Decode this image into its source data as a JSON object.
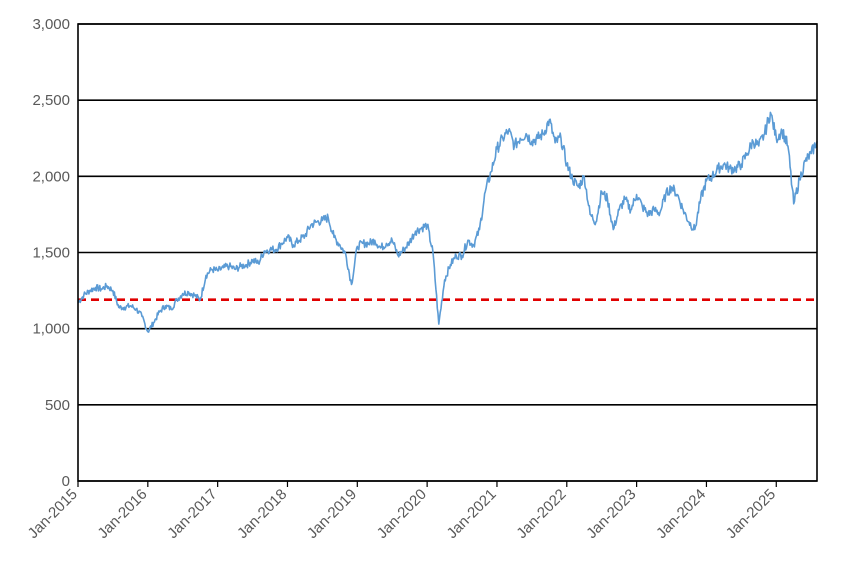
{
  "chart_data": {
    "type": "line",
    "title": "",
    "xlabel": "",
    "ylabel": "",
    "ylim": [
      0,
      3000
    ],
    "xlim": [
      "2015-01",
      "2025-08"
    ],
    "y_ticks": [
      0,
      500,
      1000,
      1500,
      2000,
      2500,
      3000
    ],
    "y_tick_labels": [
      "0",
      "500",
      "1,000",
      "1,500",
      "2,000",
      "2,500",
      "3,000"
    ],
    "x_ticks": [
      "2015-01",
      "2016-01",
      "2017-01",
      "2018-01",
      "2019-01",
      "2020-01",
      "2021-01",
      "2022-01",
      "2023-01",
      "2024-01",
      "2025-01"
    ],
    "x_tick_labels": [
      "Jan-2015",
      "Jan-2016",
      "Jan-2017",
      "Jan-2018",
      "Jan-2019",
      "Jan-2020",
      "Jan-2021",
      "Jan-2022",
      "Jan-2023",
      "Jan-2024",
      "Jan-2025"
    ],
    "grid": "horizontal",
    "legend": "none",
    "series": [
      {
        "color": "#5b9bd5",
        "x": [
          "2015-01",
          "2015-02",
          "2015-03",
          "2015-04",
          "2015-05",
          "2015-06",
          "2015-07",
          "2015-08",
          "2015-09",
          "2015-10",
          "2015-11",
          "2015-12",
          "2016-01",
          "2016-02",
          "2016-03",
          "2016-04",
          "2016-05",
          "2016-06",
          "2016-07",
          "2016-08",
          "2016-09",
          "2016-10",
          "2016-11",
          "2016-12",
          "2017-01",
          "2017-02",
          "2017-03",
          "2017-04",
          "2017-05",
          "2017-06",
          "2017-07",
          "2017-08",
          "2017-09",
          "2017-10",
          "2017-11",
          "2017-12",
          "2018-01",
          "2018-02",
          "2018-03",
          "2018-04",
          "2018-05",
          "2018-06",
          "2018-07",
          "2018-08",
          "2018-09",
          "2018-10",
          "2018-11",
          "2018-12",
          "2019-01",
          "2019-02",
          "2019-03",
          "2019-04",
          "2019-05",
          "2019-06",
          "2019-07",
          "2019-08",
          "2019-09",
          "2019-10",
          "2019-11",
          "2019-12",
          "2020-01",
          "2020-02",
          "2020-03",
          "2020-04",
          "2020-05",
          "2020-06",
          "2020-07",
          "2020-08",
          "2020-09",
          "2020-10",
          "2020-11",
          "2020-12",
          "2021-01",
          "2021-02",
          "2021-03",
          "2021-04",
          "2021-05",
          "2021-06",
          "2021-07",
          "2021-08",
          "2021-09",
          "2021-10",
          "2021-11",
          "2021-12",
          "2022-01",
          "2022-02",
          "2022-03",
          "2022-04",
          "2022-05",
          "2022-06",
          "2022-07",
          "2022-08",
          "2022-09",
          "2022-10",
          "2022-11",
          "2022-12",
          "2023-01",
          "2023-02",
          "2023-03",
          "2023-04",
          "2023-05",
          "2023-06",
          "2023-07",
          "2023-08",
          "2023-09",
          "2023-10",
          "2023-11",
          "2023-12",
          "2024-01",
          "2024-02",
          "2024-03",
          "2024-04",
          "2024-05",
          "2024-06",
          "2024-07",
          "2024-08",
          "2024-09",
          "2024-10",
          "2024-11",
          "2024-12",
          "2025-01",
          "2025-02",
          "2025-03",
          "2025-04",
          "2025-05",
          "2025-06",
          "2025-07",
          "2025-08"
        ],
        "values": [
          1170,
          1220,
          1250,
          1270,
          1260,
          1280,
          1250,
          1140,
          1140,
          1150,
          1130,
          1080,
          980,
          1040,
          1110,
          1150,
          1130,
          1190,
          1230,
          1240,
          1220,
          1190,
          1350,
          1390,
          1380,
          1400,
          1410,
          1390,
          1410,
          1420,
          1450,
          1430,
          1510,
          1520,
          1520,
          1560,
          1600,
          1550,
          1580,
          1610,
          1680,
          1700,
          1710,
          1730,
          1600,
          1550,
          1490,
          1290,
          1540,
          1560,
          1560,
          1580,
          1530,
          1560,
          1580,
          1480,
          1520,
          1570,
          1640,
          1660,
          1680,
          1500,
          1030,
          1320,
          1420,
          1480,
          1480,
          1580,
          1550,
          1650,
          1900,
          2030,
          2180,
          2250,
          2300,
          2200,
          2250,
          2280,
          2230,
          2250,
          2280,
          2370,
          2220,
          2250,
          2080,
          1980,
          1930,
          2000,
          1750,
          1700,
          1900,
          1850,
          1650,
          1780,
          1850,
          1780,
          1880,
          1800,
          1750,
          1780,
          1760,
          1880,
          1930,
          1880,
          1780,
          1700,
          1650,
          1850,
          1970,
          2000,
          2050,
          2080,
          2050,
          2050,
          2080,
          2150,
          2230,
          2200,
          2280,
          2420,
          2250,
          2300,
          2200,
          1820,
          1980,
          2100,
          2150,
          2230
        ]
      }
    ],
    "reference_line": {
      "value": 1190,
      "color": "#e00000",
      "style": "dashed"
    }
  }
}
